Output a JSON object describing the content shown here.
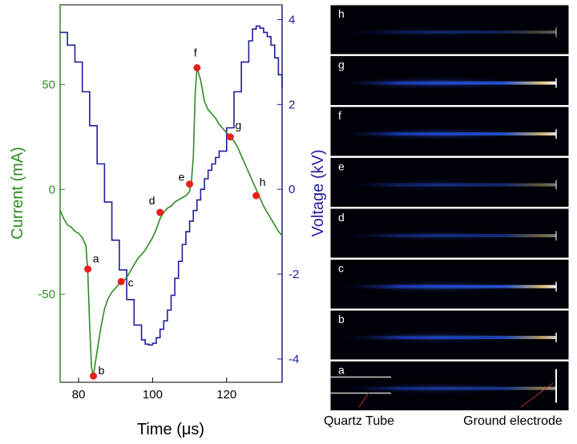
{
  "chart_data": {
    "type": "line",
    "xlabel": "Time (μs)",
    "ylabel_left": "Current (mA)",
    "ylabel_right": "Voltage (kV)",
    "xlim": [
      75,
      135
    ],
    "ylim_left": [
      -92,
      88
    ],
    "ylim_right": [
      -4.55,
      4.35
    ],
    "x_ticks": [
      80,
      100,
      120
    ],
    "y_ticks_left": [
      -50,
      0,
      50
    ],
    "y_ticks_right": [
      -4,
      -2,
      0,
      2,
      4
    ],
    "colors": {
      "current": "#2e8b22",
      "voltage": "#1e1e9c",
      "markers": "#e8201c"
    },
    "series": [
      {
        "axis": "left",
        "x": [
          75,
          76,
          77,
          78,
          79,
          80,
          81,
          82,
          82.5,
          83,
          83.5,
          84,
          85,
          86,
          87,
          88,
          89,
          90,
          91,
          92,
          93,
          94,
          95,
          96,
          97,
          98,
          99,
          100,
          101,
          102,
          103,
          104,
          105,
          106,
          107,
          108,
          109,
          110,
          110.5,
          111,
          111.5,
          112,
          113,
          114,
          115,
          116,
          117,
          118,
          119,
          120,
          121,
          122,
          123,
          124,
          125,
          126,
          127,
          128,
          129,
          130,
          131,
          132,
          133,
          134,
          135
        ],
        "values": [
          -10,
          -14,
          -17,
          -18,
          -20,
          -21,
          -23,
          -27,
          -40,
          -65,
          -85,
          -89,
          -77,
          -66,
          -57,
          -52,
          -49,
          -47,
          -45,
          -44,
          -42,
          -39,
          -36,
          -33,
          -31,
          -29,
          -26,
          -23,
          -19,
          -14,
          -11,
          -9,
          -8,
          -6,
          -5,
          -4,
          -3,
          -1,
          4,
          15,
          45,
          58,
          52,
          42,
          38,
          36,
          34,
          31,
          29,
          27,
          25,
          23,
          20,
          16,
          12,
          8,
          4,
          0,
          -4,
          -8,
          -11,
          -14,
          -17,
          -20,
          -22
        ]
      },
      {
        "axis": "right",
        "x": [
          75,
          77,
          79,
          81,
          83,
          85,
          87,
          89,
          91,
          93,
          95,
          97,
          98,
          99,
          100,
          101,
          102,
          103,
          104,
          105,
          106,
          107,
          108,
          109,
          110,
          111,
          112,
          113,
          114,
          115,
          116,
          117,
          118,
          120,
          122,
          124,
          126,
          127,
          128,
          129,
          130,
          131,
          132,
          133,
          134,
          135
        ],
        "values": [
          3.7,
          3.4,
          3.0,
          2.3,
          1.5,
          0.6,
          -0.3,
          -1.2,
          -1.9,
          -2.6,
          -3.2,
          -3.55,
          -3.65,
          -3.67,
          -3.63,
          -3.5,
          -3.3,
          -3.1,
          -2.85,
          -2.5,
          -2.1,
          -1.7,
          -1.3,
          -1.0,
          -0.75,
          -0.5,
          -0.25,
          0.0,
          0.25,
          0.45,
          0.6,
          0.75,
          0.9,
          1.45,
          2.3,
          3.0,
          3.5,
          3.78,
          3.85,
          3.8,
          3.7,
          3.6,
          3.4,
          3.1,
          2.7,
          2.4
        ]
      }
    ],
    "markers": [
      {
        "label": "a",
        "x": 82.5,
        "y": -38
      },
      {
        "label": "b",
        "x": 84,
        "y": -89
      },
      {
        "label": "c",
        "x": 91.5,
        "y": -44
      },
      {
        "label": "d",
        "x": 102,
        "y": -11
      },
      {
        "label": "e",
        "x": 110,
        "y": 2.5
      },
      {
        "label": "f",
        "x": 112,
        "y": 58
      },
      {
        "label": "g",
        "x": 121,
        "y": 25
      },
      {
        "label": "h",
        "x": 128,
        "y": -3
      }
    ]
  },
  "panels": {
    "labels": [
      "h",
      "g",
      "f",
      "e",
      "d",
      "c",
      "b",
      "a"
    ],
    "intensity": [
      0.35,
      1.0,
      0.9,
      0.45,
      0.5,
      0.95,
      0.8,
      0.6
    ],
    "captions": {
      "quartz": "Quartz Tube",
      "ground": "Ground electrode"
    }
  }
}
